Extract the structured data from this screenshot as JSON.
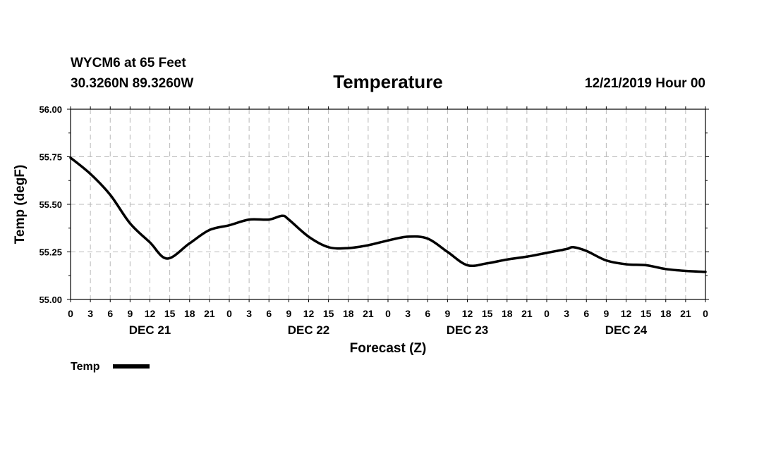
{
  "header": {
    "station": "WYCM6 at 65 Feet",
    "coords": "30.3260N 89.3260W",
    "datetime": "12/21/2019 Hour 00"
  },
  "chart_data": {
    "type": "line",
    "title": "Temperature",
    "xlabel": "Forecast (Z)",
    "ylabel": "Temp (degF)",
    "x_unit": "forecast hour from 12/21/2019 00Z",
    "xlim": [
      0,
      96
    ],
    "ylim": [
      55.0,
      56.0
    ],
    "y_ticks": [
      "55.00",
      "55.25",
      "55.50",
      "55.75",
      "56.00"
    ],
    "x_ticks": [
      "0",
      "3",
      "6",
      "9",
      "12",
      "15",
      "18",
      "21",
      "0",
      "3",
      "6",
      "9",
      "12",
      "15",
      "18",
      "21",
      "0",
      "3",
      "6",
      "9",
      "12",
      "15",
      "18",
      "21",
      "0",
      "3",
      "6",
      "9",
      "12",
      "15",
      "18",
      "21",
      "0"
    ],
    "day_labels": [
      {
        "label": "DEC 21",
        "hour": 12
      },
      {
        "label": "DEC 22",
        "hour": 36
      },
      {
        "label": "DEC 23",
        "hour": 60
      },
      {
        "label": "DEC 24",
        "hour": 84
      }
    ],
    "grid": true,
    "legend_position": "bottom-left",
    "series": [
      {
        "name": "Temp",
        "color": "#000000",
        "x": [
          0,
          3,
          6,
          9,
          12,
          14.6,
          18,
          21,
          24,
          27,
          30,
          32,
          33,
          36,
          39,
          42,
          45,
          48,
          51,
          54,
          57,
          60,
          63,
          66,
          69,
          72,
          75,
          76,
          78,
          81,
          84,
          87,
          90,
          93,
          96
        ],
        "y": [
          55.745,
          55.66,
          55.55,
          55.4,
          55.3,
          55.215,
          55.295,
          55.365,
          55.39,
          55.42,
          55.42,
          55.44,
          55.42,
          55.33,
          55.275,
          55.27,
          55.285,
          55.31,
          55.33,
          55.32,
          55.25,
          55.18,
          55.19,
          55.21,
          55.225,
          55.245,
          55.265,
          55.275,
          55.255,
          55.205,
          55.185,
          55.18,
          55.16,
          55.15,
          55.145
        ]
      }
    ]
  }
}
